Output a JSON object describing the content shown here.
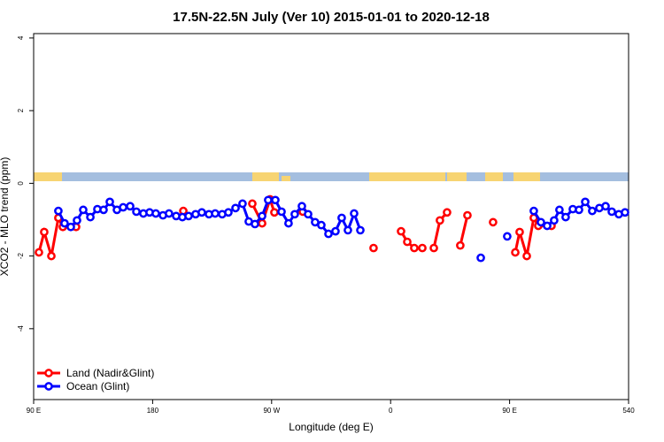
{
  "chart_data": {
    "type": "line",
    "title": "17.5N-22.5N July (Ver 10)   2015-01-01 to 2020-12-18",
    "x_label": "Longitude (deg E)",
    "y_label": "XCO2 - MLO trend (ppm)",
    "xlim": [
      90,
      540
    ],
    "ylim": [
      -5.95,
      4.12
    ],
    "xticks": [
      {
        "value": 90,
        "label": "90 E"
      },
      180,
      {
        "value": 270,
        "label": "90 W"
      },
      {
        "value": 360,
        "label": "0"
      },
      {
        "value": 450,
        "label": "90 E"
      },
      540
    ],
    "yticks": [
      4,
      2,
      0,
      -2,
      -4
    ],
    "legend": "bottom-left",
    "series": [
      {
        "name": "Land (Nadir&Glint)",
        "color": "#ff0000",
        "x": [
          94.0,
          98.0,
          103.4,
          108.7,
          112.1,
          122.1,
          null,
          203.2,
          null,
          255.4,
          262.8,
          268.8,
          272.1,
          null,
          293.6,
          null,
          347.1,
          null,
          367.9,
          372.6,
          377.9,
          384.0,
          null,
          392.7,
          397.3,
          402.7,
          null,
          412.7,
          418.1,
          null,
          437.5,
          null,
          454.3,
          457.6,
          463.0,
          468.3,
          471.7,
          481.7
        ],
        "values": [
          -1.9,
          -1.34,
          -2.0,
          -0.95,
          -1.2,
          -1.2,
          null,
          -0.76,
          null,
          -0.56,
          -1.1,
          -0.44,
          -0.8,
          null,
          -0.78,
          null,
          -1.78,
          null,
          -1.32,
          -1.61,
          -1.78,
          -1.78,
          null,
          -1.78,
          -1.02,
          -0.8,
          null,
          -1.71,
          -0.88,
          null,
          -1.07,
          null,
          -1.9,
          -1.34,
          -2.0,
          -0.95,
          -1.17,
          -1.17
        ]
      },
      {
        "name": "Ocean (Glint)",
        "color": "#0000ff",
        "x": [
          108.7,
          113.4,
          118.1,
          122.8,
          127.5,
          132.9,
          138.2,
          142.9,
          147.6,
          153.0,
          157.7,
          163.0,
          167.7,
          173.0,
          177.7,
          182.4,
          187.8,
          192.4,
          197.8,
          202.5,
          207.2,
          212.5,
          217.2,
          222.6,
          227.3,
          232.6,
          237.3,
          242.7,
          248.0,
          252.7,
          257.4,
          262.8,
          267.4,
          272.8,
          277.5,
          282.8,
          287.5,
          292.9,
          297.6,
          302.9,
          307.6,
          313.0,
          318.3,
          323.0,
          327.7,
          332.4,
          337.1,
          null,
          428.2,
          null,
          448.2,
          null,
          468.3,
          473.7,
          478.4,
          483.7,
          487.7,
          492.4,
          497.8,
          502.5,
          507.2,
          512.5,
          517.9,
          522.6,
          527.3,
          532.6,
          537.3
        ],
        "values": [
          -0.76,
          -1.1,
          -1.2,
          -1.02,
          -0.73,
          -0.93,
          -0.71,
          -0.73,
          -0.51,
          -0.73,
          -0.66,
          -0.63,
          -0.78,
          -0.83,
          -0.8,
          -0.83,
          -0.88,
          -0.83,
          -0.9,
          -0.93,
          -0.9,
          -0.85,
          -0.8,
          -0.85,
          -0.83,
          -0.85,
          -0.8,
          -0.68,
          -0.56,
          -1.05,
          -1.12,
          -0.9,
          -0.46,
          -0.46,
          -0.78,
          -1.1,
          -0.85,
          -0.63,
          -0.85,
          -1.07,
          -1.15,
          -1.39,
          -1.32,
          -0.95,
          -1.29,
          -0.83,
          -1.29,
          null,
          -2.05,
          null,
          -1.46,
          null,
          -0.76,
          -1.07,
          -1.17,
          -1.02,
          -0.73,
          -0.93,
          -0.71,
          -0.73,
          -0.51,
          -0.76,
          -0.68,
          -0.63,
          -0.78,
          -0.85,
          -0.8
        ]
      }
    ]
  }
}
